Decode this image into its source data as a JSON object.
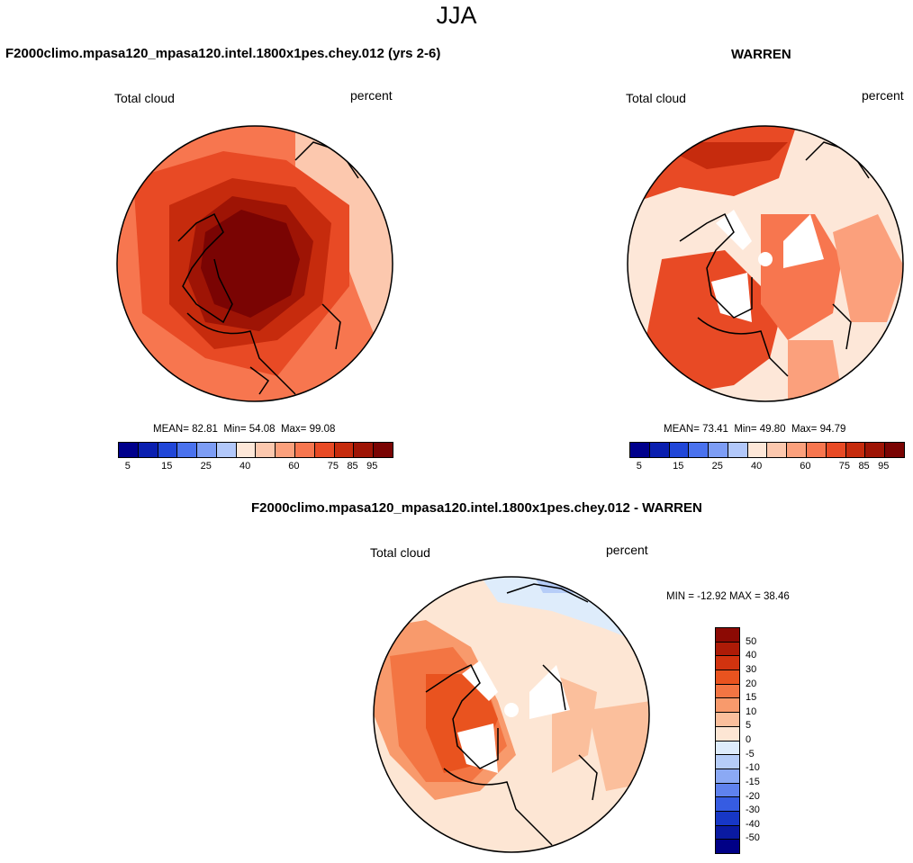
{
  "figure": {
    "season": "JJA",
    "field_label": "Total cloud",
    "units_label": "percent"
  },
  "panels": {
    "model": {
      "title": "F2000climo.mpasa120_mpasa120.intel.1800x1pes.chey.012 (yrs 2-6)",
      "mean_label": "MEAN=",
      "mean": "82.81",
      "min_label": "Min=",
      "min": "54.08",
      "max_label": "Max=",
      "max": "99.08"
    },
    "obs": {
      "title": "WARREN",
      "mean_label": "MEAN=",
      "mean": "73.41",
      "min_label": "Min=",
      "min": "49.80",
      "max_label": "Max=",
      "max": "94.79"
    },
    "diff": {
      "title": "F2000climo.mpasa120_mpasa120.intel.1800x1pes.chey.012 - WARREN",
      "minmax": "MIN = -12.92 MAX =  38.46"
    }
  },
  "colorbars": {
    "abs_ticks": [
      "5",
      "15",
      "25",
      "40",
      "60",
      "75",
      "85",
      "95"
    ],
    "abs_colors": [
      "#00008c",
      "#0a1fb0",
      "#2046d8",
      "#4a72ee",
      "#7d9df5",
      "#b2c8fa",
      "#fde7d8",
      "#fcc8ae",
      "#fba07c",
      "#f7764f",
      "#e84a25",
      "#c62b0d",
      "#9e1405",
      "#7a0403"
    ],
    "diff_ticks": [
      "50",
      "40",
      "30",
      "20",
      "15",
      "10",
      "5",
      "0",
      "-5",
      "-10",
      "-15",
      "-20",
      "-30",
      "-40",
      "-50"
    ],
    "diff_colors": [
      "#8c0a04",
      "#ad1b07",
      "#d1330f",
      "#e9531f",
      "#f37543",
      "#f89a6c",
      "#fbbf9c",
      "#fde6d4",
      "#deecfb",
      "#b6cdf8",
      "#8ba9f4",
      "#5f82ee",
      "#365ce2",
      "#1737c6",
      "#0a1aa1",
      "#000086"
    ]
  },
  "colors": {
    "coast": "#000000",
    "missing": "#ffffff"
  }
}
